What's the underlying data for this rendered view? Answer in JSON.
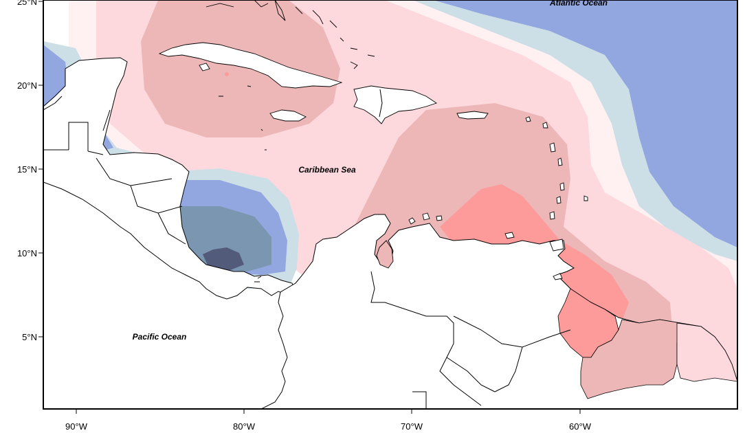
{
  "map": {
    "labels": {
      "atlantic": "Atlantic Ocean",
      "caribbean": "Caribbean Sea",
      "pacific": "Pacific Ocean"
    },
    "lat_ticks": [
      "25°N",
      "20°N",
      "15°N",
      "10°N",
      "5°N"
    ],
    "lon_ticks": [
      "90°W",
      "80°W",
      "70°W",
      "60°W"
    ],
    "colors": {
      "blue_1": "#ccdfe6",
      "blue_2": "#92a6e0",
      "blue_3": "#7b96b0",
      "blue_4": "#525b7a",
      "pink_1": "#fff1f1",
      "pink_2": "#fdd9de",
      "pink_3": "#edb7b8",
      "pink_4": "#fd9a9a",
      "land": "#ffffff",
      "frame": "#000000"
    }
  }
}
